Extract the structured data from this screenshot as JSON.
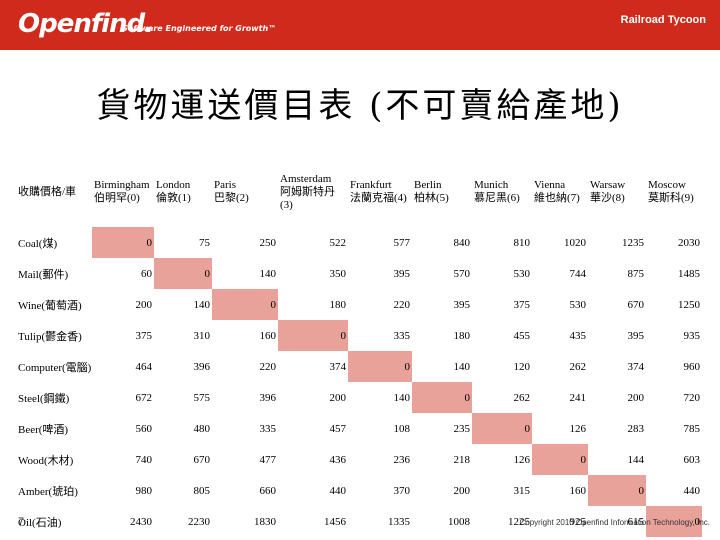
{
  "header": {
    "logo": "Openfind.",
    "tagline": "Software Engineered for Growth™",
    "app_title": "Railroad Tycoon"
  },
  "title": "貨物運送價目表 (不可賣給產地)",
  "table": {
    "corner": "收購價格/車",
    "columns": [
      {
        "en": "Birmingham",
        "cn": "伯明罕(0)"
      },
      {
        "en": "London",
        "cn": "倫敦(1)"
      },
      {
        "en": "Paris",
        "cn": "巴黎(2)"
      },
      {
        "en": "Amsterdam",
        "cn": "阿姆斯特丹",
        "extra": "(3)"
      },
      {
        "en": "Frankfurt",
        "cn": "法蘭克福(4)"
      },
      {
        "en": "Berlin",
        "cn": "柏林(5)"
      },
      {
        "en": "Munich",
        "cn": "慕尼黑(6)"
      },
      {
        "en": "Vienna",
        "cn": "維也納(7)"
      },
      {
        "en": "Warsaw",
        "cn": "華沙(8)"
      },
      {
        "en": "Moscow",
        "cn": "莫斯科(9)"
      }
    ],
    "rows": [
      {
        "label": "Coal(煤)",
        "values": [
          "0",
          "75",
          "250",
          "522",
          "577",
          "840",
          "810",
          "1020",
          "1235",
          "2030"
        ]
      },
      {
        "label": "Mail(郵件)",
        "values": [
          "60",
          "0",
          "140",
          "350",
          "395",
          "570",
          "530",
          "744",
          "875",
          "1485"
        ]
      },
      {
        "label": "Wine(葡萄酒)",
        "values": [
          "200",
          "140",
          "0",
          "180",
          "220",
          "395",
          "375",
          "530",
          "670",
          "1250"
        ]
      },
      {
        "label": "Tulip(鬱金香)",
        "values": [
          "375",
          "310",
          "160",
          "0",
          "335",
          "180",
          "455",
          "435",
          "395",
          "935"
        ]
      },
      {
        "label": "Computer(電腦)",
        "values": [
          "464",
          "396",
          "220",
          "374",
          "0",
          "140",
          "120",
          "262",
          "374",
          "960"
        ]
      },
      {
        "label": "Steel(鋼鐵)",
        "values": [
          "672",
          "575",
          "396",
          "200",
          "140",
          "0",
          "262",
          "241",
          "200",
          "720"
        ]
      },
      {
        "label": "Beer(啤酒)",
        "values": [
          "560",
          "480",
          "335",
          "457",
          "108",
          "235",
          "0",
          "126",
          "283",
          "785"
        ]
      },
      {
        "label": "Wood(木材)",
        "values": [
          "740",
          "670",
          "477",
          "436",
          "236",
          "218",
          "126",
          "0",
          "144",
          "603"
        ]
      },
      {
        "label": "Amber(琥珀)",
        "values": [
          "980",
          "805",
          "660",
          "440",
          "370",
          "200",
          "315",
          "160",
          "0",
          "440"
        ]
      },
      {
        "label": "Oil(石油)",
        "values": [
          "2430",
          "2230",
          "1830",
          "1456",
          "1335",
          "1008",
          "1225",
          "925",
          "615",
          "0"
        ]
      }
    ]
  },
  "footer": {
    "page_number": "7",
    "copyright": "Copyright 2010 Openfind Information Technology, Inc."
  },
  "colors": {
    "header_bar": "#d02a1c",
    "diagonal_cell": "#e8a29a"
  }
}
